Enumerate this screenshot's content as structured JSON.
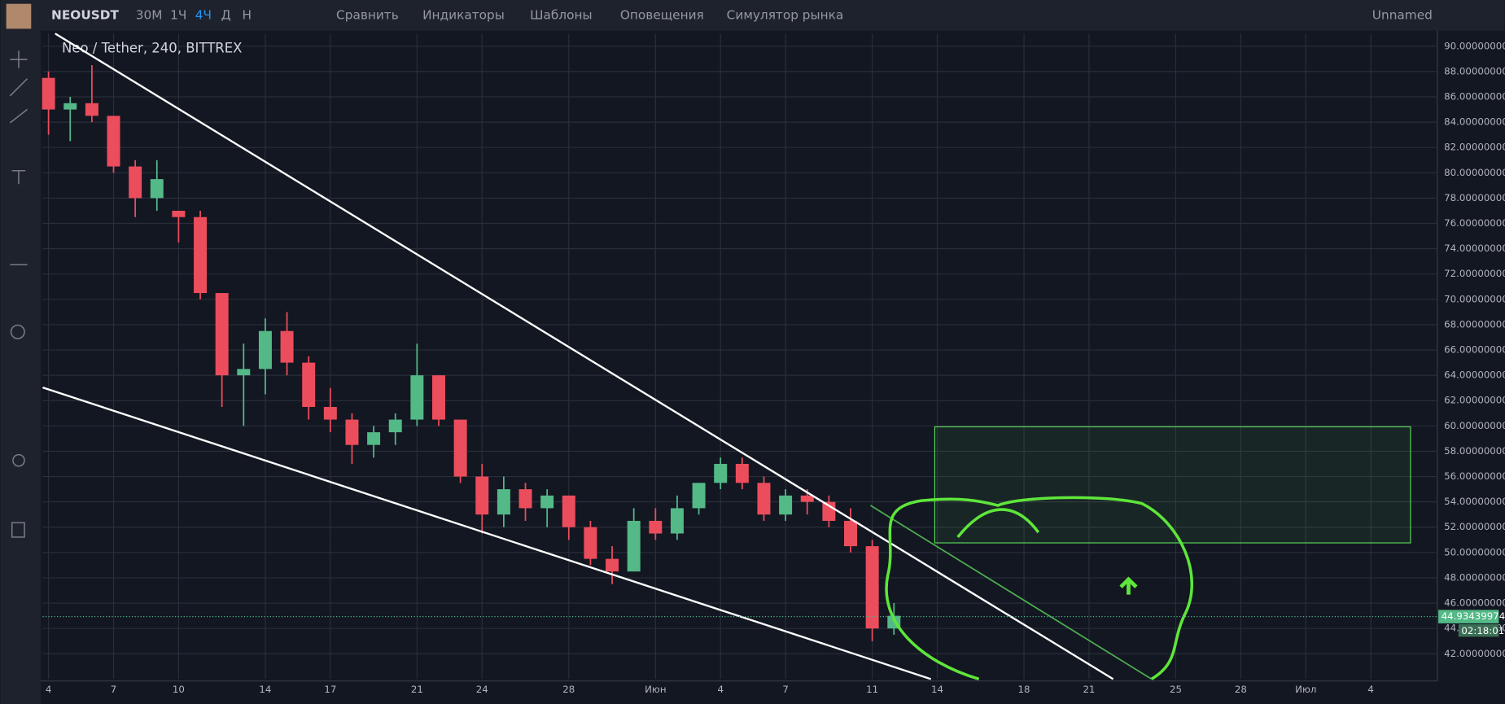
{
  "toolbar": {
    "symbol": "NEOUSDT",
    "intervals": [
      "30М",
      "1Ч",
      "4Ч",
      "Д",
      "Н"
    ],
    "buttons": [
      "Сравнить",
      "Индикаторы",
      "Шаблоны",
      "Оповещения",
      "Симулятор рынка"
    ],
    "layout_name": "Unnamed"
  },
  "chart_data": {
    "type": "candlestick",
    "title": "Neo / Tether, 240, BITTREX",
    "x": [
      4,
      5,
      6,
      7,
      8,
      9,
      10,
      11,
      12,
      13,
      14,
      15,
      16,
      17,
      18,
      19,
      20,
      21,
      22,
      23,
      24,
      25,
      26,
      27,
      28,
      29,
      30,
      31,
      32,
      33,
      34,
      35,
      36,
      37,
      38,
      39,
      40,
      41,
      42,
      43
    ],
    "open": [
      87.5,
      85,
      85.5,
      84.5,
      80.5,
      78,
      77,
      76.5,
      70.5,
      64,
      64.5,
      67.5,
      65,
      61.5,
      60.5,
      58.5,
      59.5,
      60.5,
      64,
      60.5,
      56,
      53,
      55,
      53.5,
      54.5,
      52,
      49.5,
      48.5,
      52.5,
      51.5,
      53.5,
      55.5,
      57,
      55.5,
      53,
      54.5,
      54,
      52.5,
      50.5,
      44
    ],
    "high": [
      88,
      86,
      88.5,
      84.5,
      81,
      81,
      77,
      77,
      70.5,
      66.5,
      68.5,
      69,
      65.5,
      63,
      61,
      60,
      61,
      66.5,
      64,
      60.5,
      57,
      56,
      55.5,
      55,
      54.5,
      52.5,
      50.5,
      53.5,
      53.5,
      54.5,
      55.5,
      57.5,
      57.5,
      56,
      55,
      55,
      54.5,
      53.5,
      51,
      46
    ],
    "low": [
      83,
      82.5,
      84,
      80,
      76.5,
      77,
      74.5,
      70,
      61.5,
      60,
      62.5,
      64,
      60.5,
      59.5,
      57,
      57.5,
      58.5,
      60,
      60,
      55.5,
      51.5,
      52,
      52.5,
      52,
      51,
      49,
      47.5,
      48.5,
      51,
      51,
      53,
      55,
      55,
      52.5,
      52.5,
      53,
      52,
      50,
      43,
      43.5
    ],
    "close": [
      85,
      85.5,
      84.5,
      80.5,
      78,
      79.5,
      76.5,
      70.5,
      64,
      64.5,
      67.5,
      65,
      61.5,
      60.5,
      58.5,
      59.5,
      60.5,
      64,
      60.5,
      56,
      53,
      55,
      53.5,
      54.5,
      52,
      49.5,
      48.5,
      52.5,
      51.5,
      53.5,
      55.5,
      57,
      55.5,
      53,
      54.5,
      54,
      52.5,
      50.5,
      44,
      45
    ],
    "up_color": "#53b987",
    "down_color": "#eb4d5c",
    "grid": true,
    "xlim": [
      3.73,
      68.07
    ],
    "xticks": [
      4,
      7,
      10,
      14,
      17,
      21,
      24,
      28,
      {
        "value": 32,
        "label": "Июн"
      },
      {
        "value": 35,
        "label": "4"
      },
      {
        "value": 38,
        "label": "7"
      },
      {
        "value": 42,
        "label": "11"
      },
      {
        "value": 45,
        "label": "14"
      },
      {
        "value": 49,
        "label": "18"
      },
      {
        "value": 52,
        "label": "21"
      },
      {
        "value": 56,
        "label": "25"
      },
      {
        "value": 59,
        "label": "28"
      },
      {
        "value": 62,
        "label": "Июл"
      },
      {
        "value": 65,
        "label": "4"
      }
    ],
    "ylim": [
      40,
      91
    ],
    "yticks": [
      {
        "value": 42,
        "label": "42.00000000"
      },
      {
        "value": 44,
        "label": "44.00000000"
      },
      {
        "value": 46,
        "label": "46.00000000"
      },
      {
        "value": 48,
        "label": "48.00000000"
      },
      {
        "value": 50,
        "label": "50.00000000"
      },
      {
        "value": 52,
        "label": "52.00000000"
      },
      {
        "value": 54,
        "label": "54.00000000"
      },
      {
        "value": 56,
        "label": "56.00000000"
      },
      {
        "value": 58,
        "label": "58.00000000"
      },
      {
        "value": 60,
        "label": "60.00000000"
      },
      {
        "value": 62,
        "label": "62.00000000"
      },
      {
        "value": 64,
        "label": "64.00000000"
      },
      {
        "value": 66,
        "label": "66.00000000"
      },
      {
        "value": 68,
        "label": "68.00000000"
      },
      {
        "value": 70,
        "label": "70.00000000"
      },
      {
        "value": 72,
        "label": "72.00000000"
      },
      {
        "value": 74,
        "label": "74.00000000"
      },
      {
        "value": 76,
        "label": "76.00000000"
      },
      {
        "value": 78,
        "label": "78.00000000"
      },
      {
        "value": 80,
        "label": "80.00000000"
      },
      {
        "value": 82,
        "label": "82.00000000"
      },
      {
        "value": 84,
        "label": "84.00000000"
      },
      {
        "value": 86,
        "label": "86.00000000"
      },
      {
        "value": 88,
        "label": "88.00000000"
      },
      {
        "value": 90,
        "label": "90.00000000"
      }
    ],
    "last_price": 44.93439974,
    "countdown": "02:18:01"
  }
}
